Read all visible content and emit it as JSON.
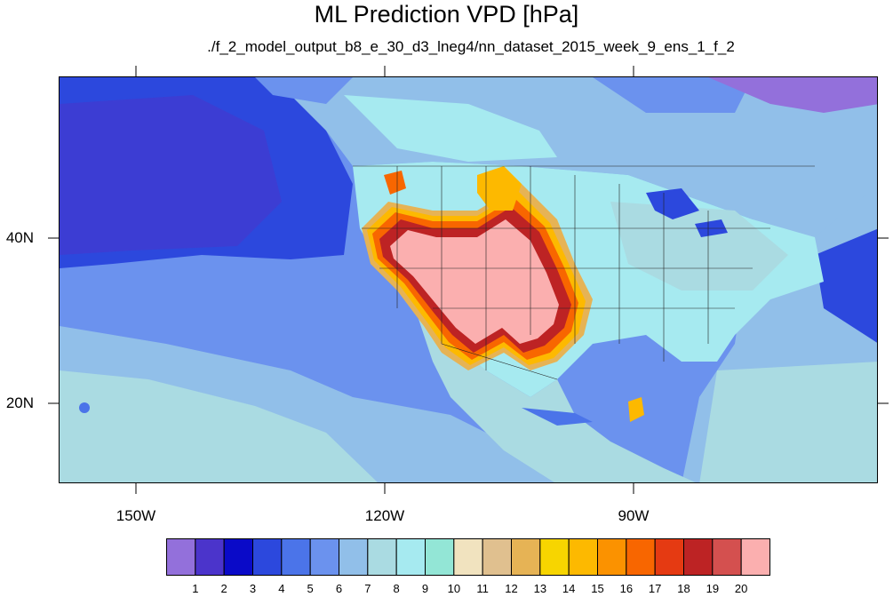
{
  "header": {
    "title": "ML Prediction VPD [hPa]",
    "subtitle": "./f_2_model_output_b8_e_30_d3_lneg4/nn_dataset_2015_week_9_ens_1_f_2"
  },
  "axes": {
    "lon_labels": [
      "150W",
      "120W",
      "90W"
    ],
    "lat_labels": [
      "40N",
      "20N"
    ]
  },
  "colorbar": {
    "labels": [
      "1",
      "2",
      "3",
      "4",
      "5",
      "6",
      "7",
      "8",
      "9",
      "10",
      "11",
      "12",
      "13",
      "14",
      "15",
      "16",
      "17",
      "18",
      "19",
      "20"
    ],
    "colors": [
      "#9370db",
      "#4b34cb",
      "#0a0ac8",
      "#2c48dd",
      "#4b74e9",
      "#6b92ee",
      "#91bfe9",
      "#aadbe2",
      "#a6eaf0",
      "#93e6d6",
      "#f1e3bf",
      "#e0c08f",
      "#e6b355",
      "#f7d500",
      "#fdb900",
      "#fb9200",
      "#f86600",
      "#e53a12",
      "#bd2324",
      "#d4504f",
      "#fbafaf"
    ]
  }
}
